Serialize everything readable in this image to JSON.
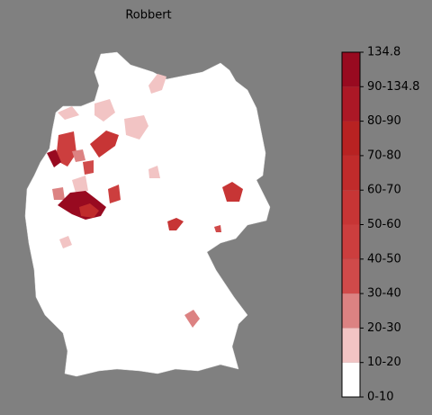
{
  "title": "Robbert",
  "colorbar": {
    "labels": [
      "0-10",
      "10-20",
      "20-30",
      "30-40",
      "40-50",
      "50-60",
      "60-70",
      "70-80",
      "80-90",
      "90-134.8",
      "134.8"
    ],
    "colors": [
      "#ffffff",
      "#f2c4c4",
      "#dc8282",
      "#d04a4a",
      "#cc3e3e",
      "#c73535",
      "#c02b2b",
      "#b82222",
      "#ac1826",
      "#980a20"
    ]
  }
}
